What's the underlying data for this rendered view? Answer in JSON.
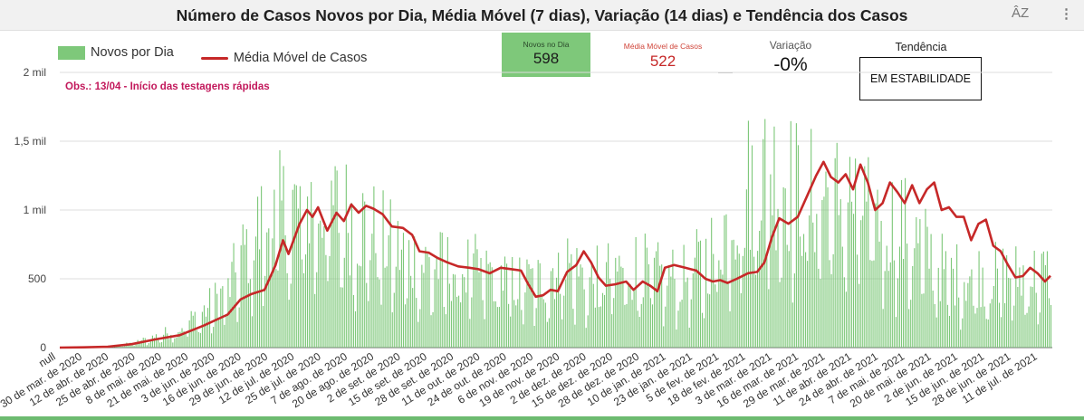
{
  "header": {
    "title": "Número de Casos Novos por Dia, Média Móvel (7 dias), Variação (14 dias) e Tendência dos Casos",
    "sort_icon": "AZ-sort-icon",
    "menu_icon": "vertical-dots-icon"
  },
  "kpi": {
    "novos_label": "Novos no Dia",
    "novos_value": "598",
    "media_label": "Média Móvel de Casos",
    "media_value": "522",
    "variacao_label": "Variação",
    "variacao_value": "-0%",
    "tendencia_label": "Tendência",
    "tendencia_value": "EM ESTABILIDADE"
  },
  "colors": {
    "bars": "#7ec87a",
    "line": "#c62828",
    "obs": "#c2185b",
    "kpi_card": "#7ec87a"
  },
  "chart_data": {
    "type": "bar",
    "legend_position": "top-left",
    "grid": true,
    "ylim": [
      0,
      2000
    ],
    "yticks": [
      {
        "value": 0,
        "label": "0"
      },
      {
        "value": 500,
        "label": "500"
      },
      {
        "value": 1000,
        "label": "1 mil"
      },
      {
        "value": 1500,
        "label": "1,5 mil"
      },
      {
        "value": 2000,
        "label": "2 mil"
      }
    ],
    "annotation": "Obs.: 13/04 - Início das testagens rápidas",
    "x_tick_labels": [
      "null",
      "30 de mar. de 2020",
      "12 de abr. de 2020",
      "25 de abr. de 2020",
      "8 de mai. de 2020",
      "21 de mai. de 2020",
      "3 de jun. de 2020",
      "16 de jun. de 2020",
      "29 de jun. de 2020",
      "12 de jul. de 2020",
      "25 de jul. de 2020",
      "7 de ago. de 2020",
      "20 de ago. de 2020",
      "2 de set. de 2020",
      "15 de set. de 2020",
      "28 de set. de 2020",
      "11 de out. de 2020",
      "24 de out. de 2020",
      "6 de nov. de 2020",
      "19 de nov. de 2020",
      "2 de dez. de 2020",
      "15 de dez. de 2020",
      "28 de dez. de 2020",
      "10 de jan. de 2021",
      "23 de jan. de 2021",
      "5 de fev. de 2021",
      "18 de fev. de 2021",
      "3 de mar. de 2021",
      "16 de mar. de 2021",
      "29 de mar. de 2021",
      "11 de abr. de 2021",
      "24 de abr. de 2021",
      "7 de mai. de 2021",
      "20 de mai. de 2021",
      "2 de jun. de 2021",
      "15 de jun. de 2021",
      "28 de jun. de 2021",
      "11 de jul. de 2021"
    ],
    "series": [
      {
        "name": "Novos por Dia",
        "type": "bar",
        "sample_every_days": 13,
        "values": [
          0,
          2,
          5,
          30,
          80,
          140,
          260,
          420,
          800,
          950,
          1000,
          1020,
          950,
          830,
          700,
          610,
          580,
          560,
          540,
          460,
          480,
          640,
          470,
          540,
          590,
          510,
          500,
          650,
          960,
          1250,
          1250,
          1080,
          1100,
          1050,
          940,
          880,
          720,
          520
        ]
      },
      {
        "name": "Média Móvel de Casos",
        "type": "line",
        "points": [
          [
            0,
            0
          ],
          [
            13,
            2
          ],
          [
            26,
            6
          ],
          [
            39,
            25
          ],
          [
            52,
            60
          ],
          [
            65,
            90
          ],
          [
            78,
            160
          ],
          [
            91,
            240
          ],
          [
            98,
            350
          ],
          [
            104,
            390
          ],
          [
            111,
            420
          ],
          [
            117,
            600
          ],
          [
            121,
            780
          ],
          [
            124,
            680
          ],
          [
            130,
            900
          ],
          [
            134,
            1000
          ],
          [
            137,
            950
          ],
          [
            140,
            1020
          ],
          [
            145,
            850
          ],
          [
            150,
            980
          ],
          [
            154,
            920
          ],
          [
            158,
            1040
          ],
          [
            162,
            980
          ],
          [
            166,
            1030
          ],
          [
            170,
            1010
          ],
          [
            175,
            970
          ],
          [
            180,
            880
          ],
          [
            186,
            870
          ],
          [
            191,
            820
          ],
          [
            195,
            700
          ],
          [
            200,
            690
          ],
          [
            205,
            650
          ],
          [
            210,
            620
          ],
          [
            216,
            590
          ],
          [
            222,
            580
          ],
          [
            227,
            570
          ],
          [
            233,
            540
          ],
          [
            239,
            580
          ],
          [
            245,
            570
          ],
          [
            250,
            560
          ],
          [
            254,
            460
          ],
          [
            258,
            370
          ],
          [
            262,
            380
          ],
          [
            266,
            420
          ],
          [
            270,
            410
          ],
          [
            275,
            550
          ],
          [
            280,
            600
          ],
          [
            284,
            700
          ],
          [
            288,
            620
          ],
          [
            292,
            510
          ],
          [
            296,
            450
          ],
          [
            301,
            460
          ],
          [
            307,
            480
          ],
          [
            311,
            420
          ],
          [
            316,
            480
          ],
          [
            320,
            450
          ],
          [
            324,
            410
          ],
          [
            328,
            580
          ],
          [
            333,
            600
          ],
          [
            339,
            580
          ],
          [
            345,
            560
          ],
          [
            350,
            500
          ],
          [
            354,
            480
          ],
          [
            358,
            490
          ],
          [
            362,
            470
          ],
          [
            367,
            500
          ],
          [
            373,
            540
          ],
          [
            378,
            550
          ],
          [
            382,
            620
          ],
          [
            386,
            800
          ],
          [
            390,
            940
          ],
          [
            395,
            900
          ],
          [
            400,
            950
          ],
          [
            405,
            1100
          ],
          [
            410,
            1250
          ],
          [
            414,
            1350
          ],
          [
            418,
            1240
          ],
          [
            422,
            1200
          ],
          [
            426,
            1260
          ],
          [
            430,
            1150
          ],
          [
            434,
            1330
          ],
          [
            438,
            1200
          ],
          [
            442,
            1000
          ],
          [
            446,
            1050
          ],
          [
            450,
            1200
          ],
          [
            454,
            1130
          ],
          [
            458,
            1050
          ],
          [
            462,
            1180
          ],
          [
            466,
            1050
          ],
          [
            470,
            1150
          ],
          [
            474,
            1200
          ],
          [
            478,
            1000
          ],
          [
            482,
            1020
          ],
          [
            486,
            950
          ],
          [
            490,
            950
          ],
          [
            494,
            780
          ],
          [
            498,
            900
          ],
          [
            502,
            930
          ],
          [
            506,
            740
          ],
          [
            510,
            700
          ],
          [
            514,
            600
          ],
          [
            518,
            510
          ],
          [
            522,
            520
          ],
          [
            526,
            580
          ],
          [
            530,
            540
          ],
          [
            534,
            480
          ],
          [
            537,
            522
          ]
        ]
      }
    ]
  }
}
